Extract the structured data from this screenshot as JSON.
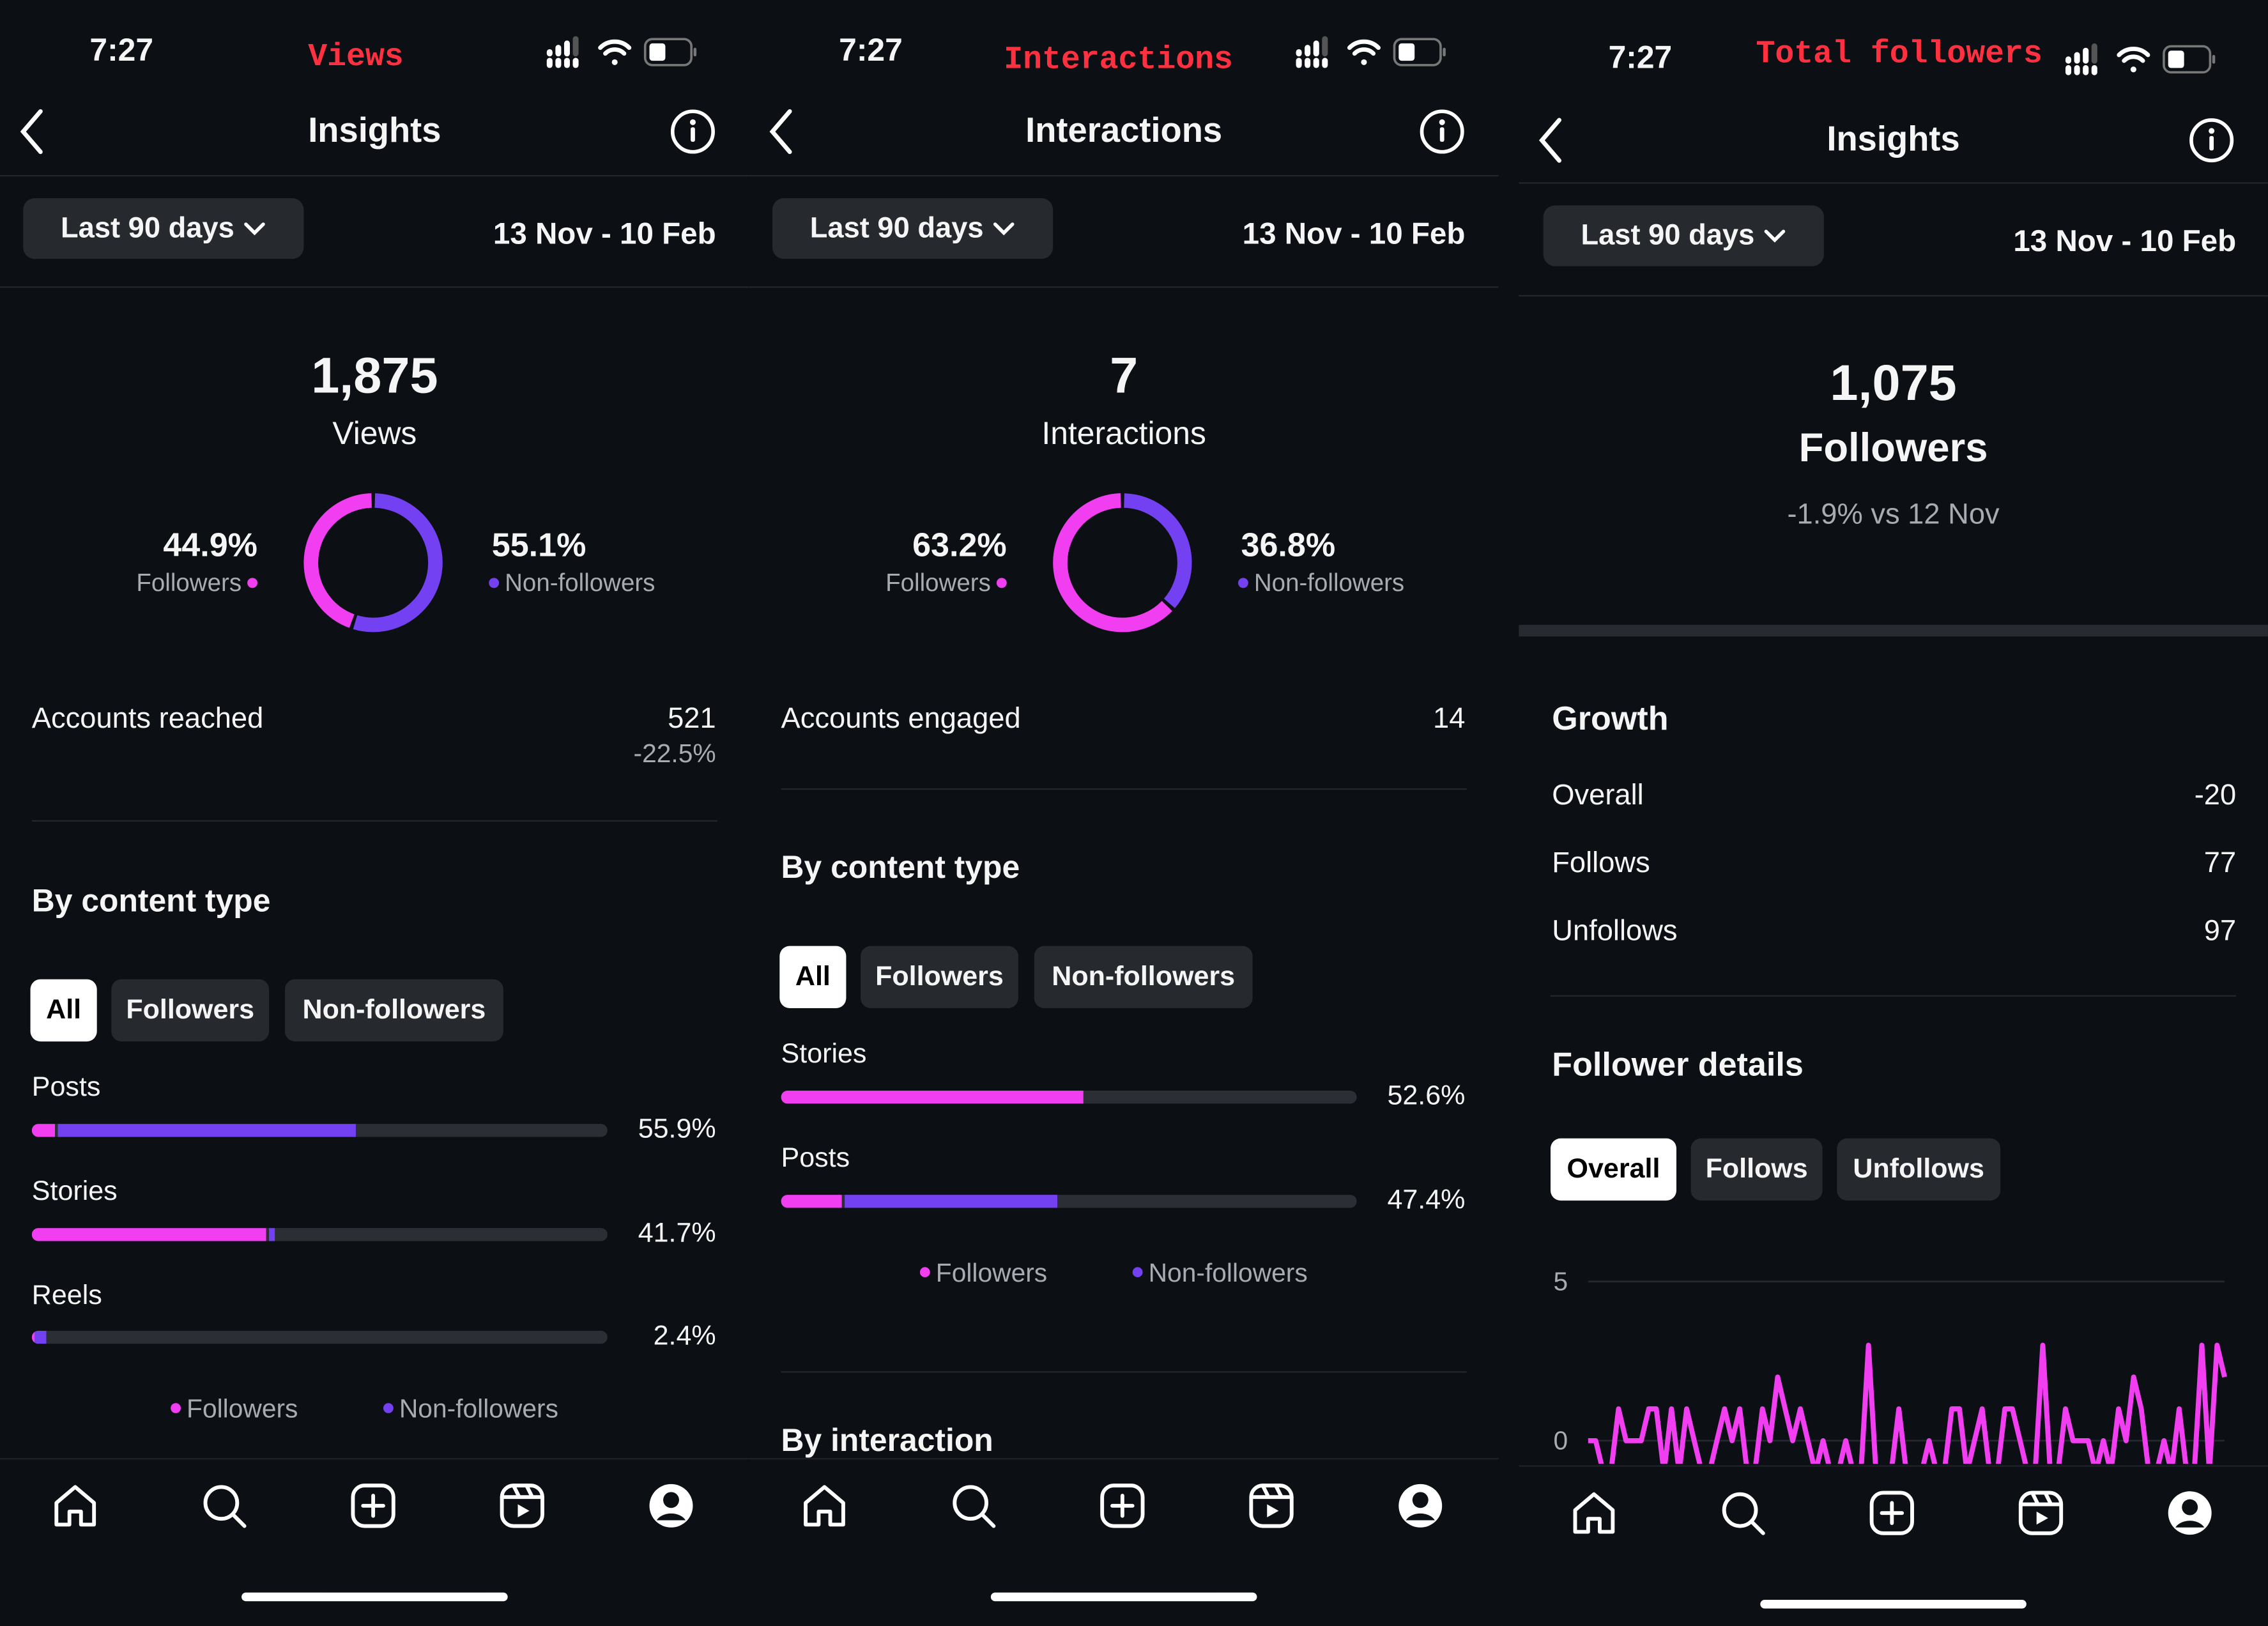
{
  "colors": {
    "background": "#0c0f14",
    "followers": "#f03ef0",
    "non_followers": "#7441f2",
    "annotation": "#ff3040",
    "chip": "#26292e"
  },
  "status_bar": {
    "time": "7:27",
    "icons": [
      "cellular-signal-icon",
      "wifi-icon",
      "battery-icon"
    ]
  },
  "bottom_nav": {
    "icons": [
      "home-icon",
      "search-icon",
      "create-icon",
      "reels-icon",
      "profile-icon"
    ]
  },
  "panels": [
    {
      "annotation": "Views",
      "header": {
        "title": "Insights",
        "back_icon": "chevron-left-icon",
        "info_icon": "info-icon"
      },
      "range": {
        "selected": "Last 90 days",
        "dates": "13 Nov - 10 Feb"
      },
      "summary": {
        "value": "1,875",
        "label": "Views"
      },
      "split": {
        "followers_pct": "44.9%",
        "followers_label": "Followers",
        "followers_value": 44.9,
        "non_followers_pct": "55.1%",
        "non_followers_label": "Non-followers",
        "non_followers_value": 55.1
      },
      "metric": {
        "label": "Accounts reached",
        "value": "521",
        "change": "-22.5%"
      },
      "section_title": "By content type",
      "chips": [
        "All",
        "Followers",
        "Non-followers"
      ],
      "bars": [
        {
          "label": "Posts",
          "value": "55.9%",
          "followers": 4,
          "non_followers": 51.9
        },
        {
          "label": "Stories",
          "value": "41.7%",
          "followers": 40.7,
          "non_followers": 1
        },
        {
          "label": "Reels",
          "value": "2.4%",
          "followers": 0.4,
          "non_followers": 2
        }
      ],
      "legend": [
        "Followers",
        "Non-followers"
      ]
    },
    {
      "annotation": "Interactions",
      "header": {
        "title": "Interactions",
        "back_icon": "chevron-left-icon",
        "info_icon": "info-icon"
      },
      "range": {
        "selected": "Last 90 days",
        "dates": "13 Nov - 10 Feb"
      },
      "summary": {
        "value": "7",
        "label": "Interactions"
      },
      "split": {
        "followers_pct": "63.2%",
        "followers_label": "Followers",
        "followers_value": 63.2,
        "non_followers_pct": "36.8%",
        "non_followers_label": "Non-followers",
        "non_followers_value": 36.8
      },
      "metric": {
        "label": "Accounts engaged",
        "value": "14"
      },
      "section_title": "By content type",
      "chips": [
        "All",
        "Followers",
        "Non-followers"
      ],
      "bars": [
        {
          "label": "Stories",
          "value": "52.6%",
          "followers": 52.6,
          "non_followers": 0
        },
        {
          "label": "Posts",
          "value": "47.4%",
          "followers": 10.5,
          "non_followers": 36.9
        }
      ],
      "legend": [
        "Followers",
        "Non-followers"
      ],
      "next_section_title": "By interaction"
    },
    {
      "annotation": "Total followers",
      "header": {
        "title": "Insights",
        "back_icon": "chevron-left-icon",
        "info_icon": "info-icon"
      },
      "range": {
        "selected": "Last 90 days",
        "dates": "13 Nov - 10 Feb"
      },
      "summary": {
        "value": "1,075",
        "label": "Followers",
        "change": "-1.9% vs 12 Nov"
      },
      "growth": {
        "title": "Growth",
        "rows": [
          {
            "label": "Overall",
            "value": "-20"
          },
          {
            "label": "Follows",
            "value": "77"
          },
          {
            "label": "Unfollows",
            "value": "97"
          }
        ]
      },
      "details": {
        "title": "Follower details",
        "chips": [
          "Overall",
          "Follows",
          "Unfollows"
        ]
      },
      "chart_data": {
        "type": "line",
        "y_ticks": [
          "5",
          "0"
        ],
        "ylim": [
          -1,
          5
        ],
        "grid": true,
        "color": "#f03ef0",
        "values": [
          0,
          0,
          -1,
          -1,
          1,
          0,
          0,
          0,
          1,
          1,
          -1,
          1,
          -1,
          1,
          0,
          -1,
          -1,
          0,
          1,
          0,
          1,
          -1,
          -1,
          1,
          0,
          2,
          1,
          0,
          1,
          0,
          -1,
          0,
          -1,
          -1,
          0,
          -1,
          -1,
          3,
          -1,
          -1,
          -1,
          1,
          -1,
          -1,
          -1,
          0,
          -1,
          -1,
          1,
          1,
          -1,
          0,
          1,
          -1,
          -1,
          1,
          1,
          0,
          -1,
          -1,
          3,
          -1,
          -1,
          1,
          0,
          0,
          0,
          -1,
          0,
          -1,
          1,
          0,
          2,
          1,
          -1,
          -1,
          0,
          -1,
          1,
          -1,
          -1,
          3,
          -1,
          3,
          2
        ]
      }
    }
  ]
}
